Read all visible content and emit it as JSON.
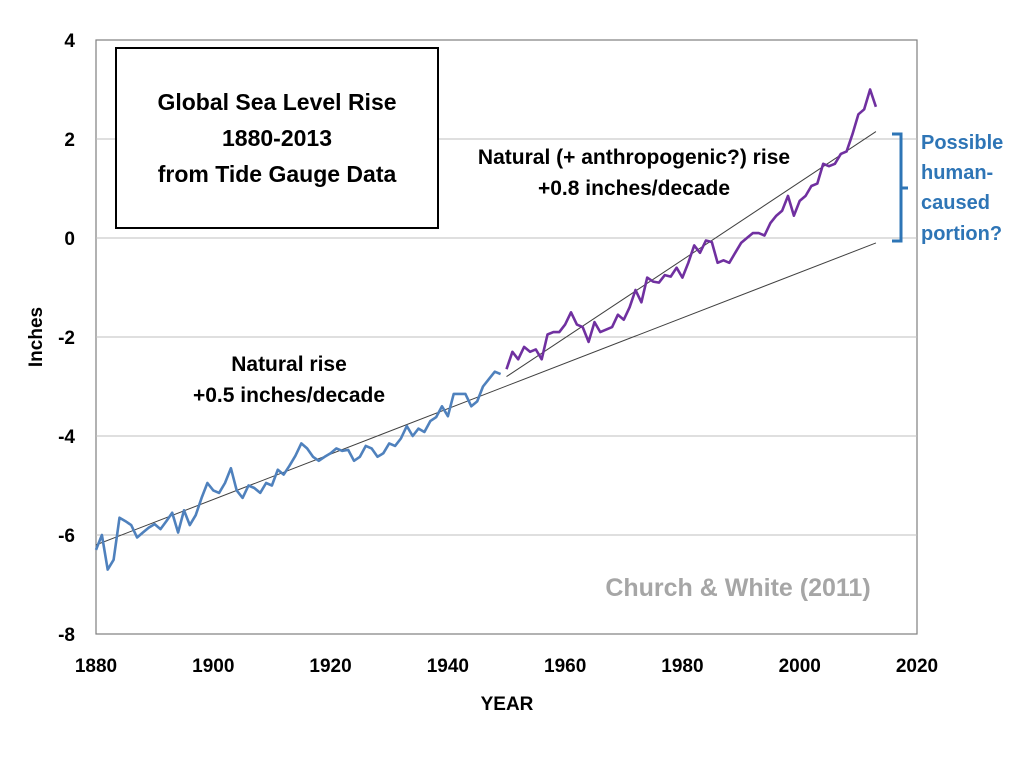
{
  "chart_data": {
    "type": "line",
    "title_lines": [
      "Global Sea Level Rise",
      "1880-2013",
      "from Tide Gauge Data"
    ],
    "xlabel": "YEAR",
    "ylabel": "Inches",
    "xlim": [
      1880,
      2020
    ],
    "ylim": [
      -8,
      4
    ],
    "x_ticks": [
      "1880",
      "1900",
      "1920",
      "1940",
      "1960",
      "1980",
      "2000",
      "2020"
    ],
    "y_ticks": [
      "4",
      "2",
      "0",
      "-2",
      "-4",
      "-6",
      "-8"
    ],
    "grid": "horizontal",
    "source": "Church & White (2011)",
    "series": [
      {
        "color": "#4f81bd",
        "x": [
          1880,
          1881,
          1882,
          1883,
          1884,
          1885,
          1886,
          1887,
          1888,
          1889,
          1890,
          1891,
          1892,
          1893,
          1894,
          1895,
          1896,
          1897,
          1898,
          1899,
          1900,
          1901,
          1902,
          1903,
          1904,
          1905,
          1906,
          1907,
          1908,
          1909,
          1910,
          1911,
          1912,
          1913,
          1914,
          1915,
          1916,
          1917,
          1918,
          1919,
          1920,
          1921,
          1922,
          1923,
          1924,
          1925,
          1926,
          1927,
          1928,
          1929,
          1930,
          1931,
          1932,
          1933,
          1934,
          1935,
          1936,
          1937,
          1938,
          1939,
          1940,
          1941,
          1942,
          1943,
          1944,
          1945,
          1946,
          1947,
          1948,
          1949
        ],
        "y": [
          -6.3,
          -6.0,
          -6.7,
          -6.5,
          -5.65,
          -5.72,
          -5.8,
          -6.05,
          -5.95,
          -5.85,
          -5.78,
          -5.88,
          -5.72,
          -5.55,
          -5.95,
          -5.5,
          -5.8,
          -5.6,
          -5.25,
          -4.95,
          -5.1,
          -5.15,
          -4.95,
          -4.65,
          -5.1,
          -5.25,
          -5.0,
          -5.05,
          -5.15,
          -4.95,
          -5.0,
          -4.68,
          -4.78,
          -4.6,
          -4.4,
          -4.15,
          -4.25,
          -4.42,
          -4.5,
          -4.42,
          -4.35,
          -4.25,
          -4.3,
          -4.28,
          -4.5,
          -4.42,
          -4.2,
          -4.25,
          -4.42,
          -4.35,
          -4.15,
          -4.2,
          -4.05,
          -3.8,
          -4.0,
          -3.85,
          -3.92,
          -3.7,
          -3.62,
          -3.4,
          -3.6,
          -3.15,
          -3.15,
          -3.15,
          -3.4,
          -3.3,
          -3.0,
          -2.85,
          -2.7,
          -2.75
        ]
      },
      {
        "color": "#7030a0",
        "x": [
          1950,
          1951,
          1952,
          1953,
          1954,
          1955,
          1956,
          1957,
          1958,
          1959,
          1960,
          1961,
          1962,
          1963,
          1964,
          1965,
          1966,
          1967,
          1968,
          1969,
          1970,
          1971,
          1972,
          1973,
          1974,
          1975,
          1976,
          1977,
          1978,
          1979,
          1980,
          1981,
          1982,
          1983,
          1984,
          1985,
          1986,
          1987,
          1988,
          1989,
          1990,
          1991,
          1992,
          1993,
          1994,
          1995,
          1996,
          1997,
          1998,
          1999,
          2000,
          2001,
          2002,
          2003,
          2004,
          2005,
          2006,
          2007,
          2008,
          2009,
          2010,
          2011,
          2012,
          2013
        ],
        "y": [
          -2.65,
          -2.3,
          -2.45,
          -2.2,
          -2.3,
          -2.25,
          -2.45,
          -1.95,
          -1.9,
          -1.9,
          -1.75,
          -1.5,
          -1.75,
          -1.8,
          -2.1,
          -1.7,
          -1.9,
          -1.85,
          -1.8,
          -1.55,
          -1.65,
          -1.4,
          -1.05,
          -1.3,
          -0.8,
          -0.88,
          -0.9,
          -0.75,
          -0.78,
          -0.6,
          -0.8,
          -0.5,
          -0.15,
          -0.3,
          -0.05,
          -0.08,
          -0.5,
          -0.45,
          -0.5,
          -0.3,
          -0.1,
          0.0,
          0.1,
          0.1,
          0.05,
          0.3,
          0.45,
          0.55,
          0.85,
          0.45,
          0.75,
          0.85,
          1.05,
          1.1,
          1.5,
          1.45,
          1.5,
          1.7,
          1.75,
          2.1,
          2.5,
          2.6,
          3.0,
          2.65
        ]
      }
    ],
    "trend_lines": [
      {
        "name": "natural",
        "x": [
          1880,
          2013
        ],
        "y": [
          -6.2,
          -0.1
        ],
        "color": "#404040"
      },
      {
        "name": "recent",
        "x": [
          1950,
          2013
        ],
        "y": [
          -2.8,
          2.15
        ],
        "color": "#404040"
      }
    ],
    "annotations": {
      "natural_lines": [
        "Natural rise",
        "+0.5 inches/decade"
      ],
      "recent_lines": [
        "Natural (+ anthropogenic?) rise",
        "+0.8 inches/decade"
      ],
      "human_lines": [
        "Possible",
        "human-",
        "caused",
        "portion?"
      ],
      "human_color": "#2e75b6"
    }
  }
}
